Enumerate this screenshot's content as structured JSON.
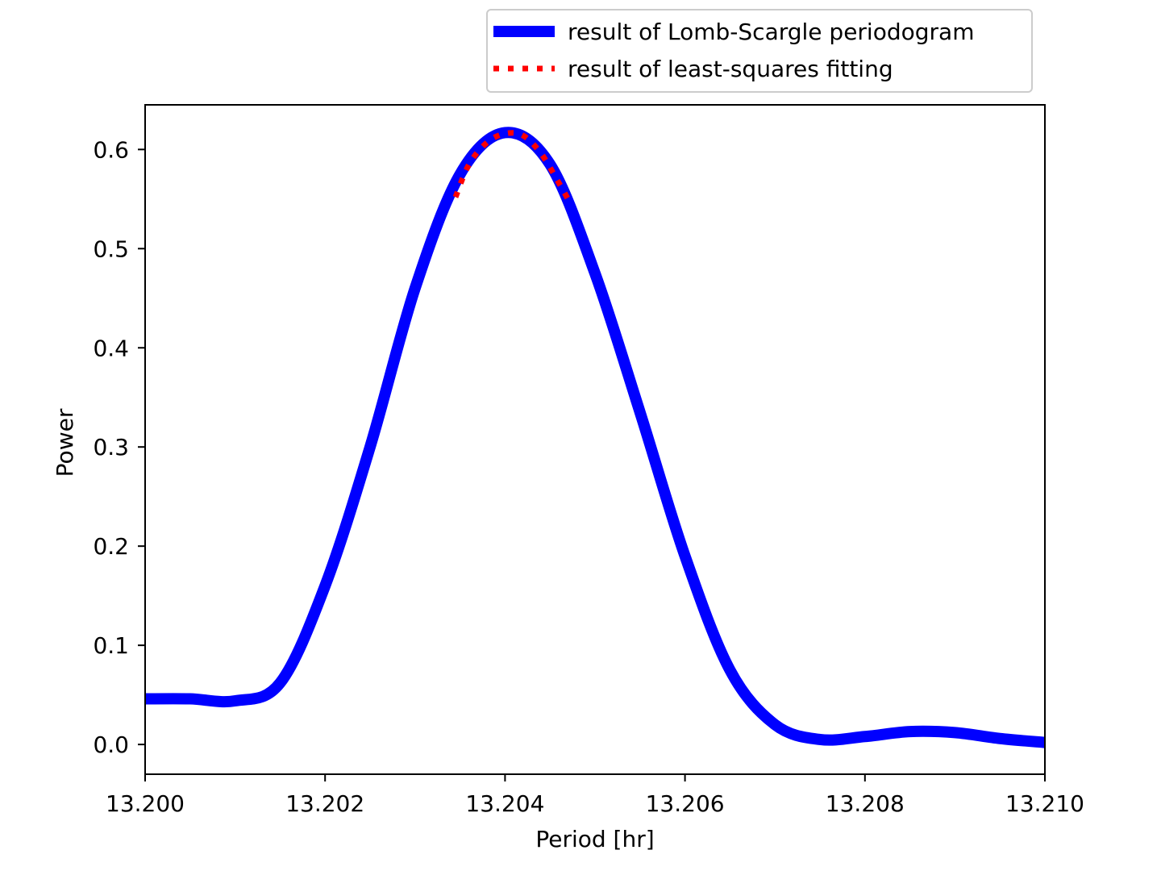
{
  "chart_data": {
    "type": "line",
    "xlabel": "Period [hr]",
    "ylabel": "Power",
    "xlim": [
      13.2,
      13.21
    ],
    "ylim": [
      -0.03,
      0.645
    ],
    "xticks": [
      13.2,
      13.202,
      13.204,
      13.206,
      13.208,
      13.21
    ],
    "xtick_labels": [
      "13.200",
      "13.202",
      "13.204",
      "13.206",
      "13.208",
      "13.210"
    ],
    "yticks": [
      0.0,
      0.1,
      0.2,
      0.3,
      0.4,
      0.5,
      0.6
    ],
    "ytick_labels": [
      "0.0",
      "0.1",
      "0.2",
      "0.3",
      "0.4",
      "0.5",
      "0.6"
    ],
    "grid": false,
    "legend_position": "above-top-right",
    "series": [
      {
        "name": "result of Lomb-Scargle periodogram",
        "color": "#0000ff",
        "style": "solid",
        "x": [
          13.2,
          13.2005,
          13.201,
          13.2015,
          13.202,
          13.2025,
          13.203,
          13.2035,
          13.204,
          13.2045,
          13.205,
          13.2055,
          13.206,
          13.2065,
          13.207,
          13.2075,
          13.208,
          13.2085,
          13.209,
          13.2095,
          13.21
        ],
        "y": [
          0.046,
          0.046,
          0.044,
          0.062,
          0.16,
          0.3,
          0.46,
          0.575,
          0.617,
          0.585,
          0.475,
          0.335,
          0.19,
          0.075,
          0.02,
          0.005,
          0.008,
          0.013,
          0.012,
          0.006,
          0.002
        ]
      },
      {
        "name": "result of least-squares fitting",
        "color": "#ff0000",
        "style": "dotted",
        "x": [
          13.20345,
          13.2036,
          13.2038,
          13.204,
          13.2042,
          13.2044,
          13.2046,
          13.2047
        ],
        "y": [
          0.552,
          0.585,
          0.607,
          0.616,
          0.614,
          0.596,
          0.566,
          0.55
        ]
      }
    ]
  }
}
